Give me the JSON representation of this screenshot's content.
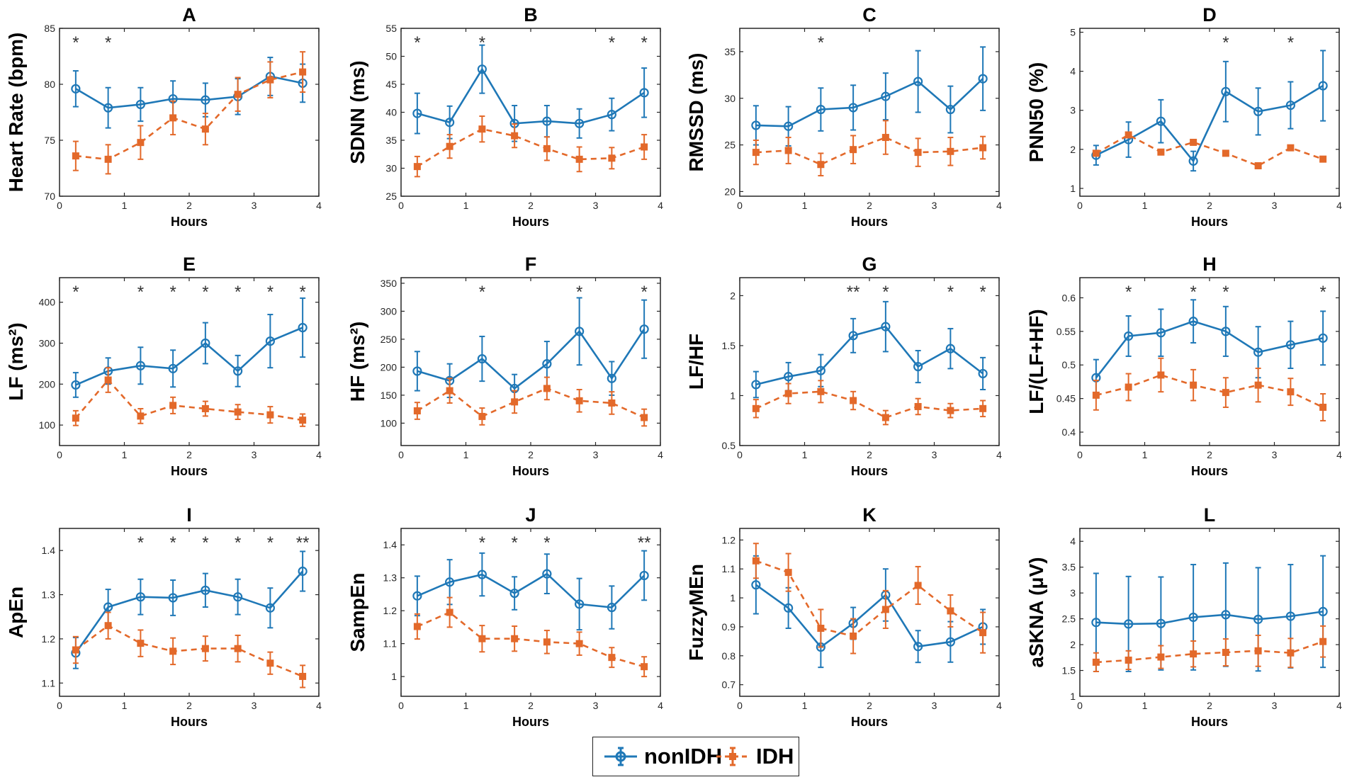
{
  "colors": {
    "nonIDH": "#1f78b7",
    "IDH": "#e3692a",
    "stars": "#333333"
  },
  "legend": {
    "nonIDH": "nonIDH",
    "IDH": "IDH"
  },
  "chart_data": [
    {
      "type": "line",
      "id": "A",
      "title": "A",
      "xlabel": "Hours",
      "ylabel": "Heart Rate (bpm)",
      "xlim": [
        0,
        4
      ],
      "xticks": [
        0,
        1,
        2,
        3,
        4
      ],
      "ylim": [
        70,
        85
      ],
      "yticks": [
        70,
        75,
        80,
        85
      ],
      "x": [
        0.25,
        0.75,
        1.25,
        1.75,
        2.25,
        2.75,
        3.25,
        3.75
      ],
      "series": [
        {
          "name": "nonIDH",
          "values": [
            79.6,
            77.9,
            78.2,
            78.7,
            78.6,
            78.9,
            80.7,
            80.1
          ],
          "err": [
            1.6,
            1.8,
            1.5,
            1.6,
            1.5,
            1.6,
            1.7,
            1.7
          ]
        },
        {
          "name": "IDH",
          "values": [
            73.6,
            73.3,
            74.8,
            77.0,
            76.0,
            79.1,
            80.4,
            81.1
          ],
          "err": [
            1.3,
            1.3,
            1.5,
            1.5,
            1.4,
            1.5,
            1.6,
            1.8
          ]
        }
      ],
      "significance": [
        {
          "x": 0.25,
          "label": "*"
        },
        {
          "x": 0.75,
          "label": "*"
        }
      ]
    },
    {
      "type": "line",
      "id": "B",
      "title": "B",
      "xlabel": "Hours",
      "ylabel": "SDNN (ms)",
      "xlim": [
        0,
        4
      ],
      "xticks": [
        0,
        1,
        2,
        3,
        4
      ],
      "ylim": [
        25,
        55
      ],
      "yticks": [
        25,
        30,
        35,
        40,
        45,
        50,
        55
      ],
      "x": [
        0.25,
        0.75,
        1.25,
        1.75,
        2.25,
        2.75,
        3.25,
        3.75
      ],
      "series": [
        {
          "name": "nonIDH",
          "values": [
            39.8,
            38.2,
            47.7,
            38.0,
            38.4,
            38.0,
            39.6,
            43.5
          ],
          "err": [
            3.6,
            2.9,
            4.3,
            3.2,
            2.8,
            2.6,
            2.9,
            4.4
          ]
        },
        {
          "name": "IDH",
          "values": [
            30.3,
            33.9,
            37.0,
            35.8,
            33.5,
            31.6,
            31.8,
            33.8
          ],
          "err": [
            1.8,
            2.1,
            2.3,
            2.1,
            2.1,
            2.2,
            1.9,
            2.2
          ]
        }
      ],
      "significance": [
        {
          "x": 0.25,
          "label": "*"
        },
        {
          "x": 1.25,
          "label": "*"
        },
        {
          "x": 3.25,
          "label": "*"
        },
        {
          "x": 3.75,
          "label": "*"
        }
      ]
    },
    {
      "type": "line",
      "id": "C",
      "title": "C",
      "xlabel": "Hours",
      "ylabel": "RMSSD (ms)",
      "xlim": [
        0,
        4
      ],
      "xticks": [
        0,
        1,
        2,
        3,
        4
      ],
      "ylim": [
        19.5,
        37.5
      ],
      "yticks": [
        20,
        25,
        30,
        35
      ],
      "x": [
        0.25,
        0.75,
        1.25,
        1.75,
        2.25,
        2.75,
        3.25,
        3.75
      ],
      "series": [
        {
          "name": "nonIDH",
          "values": [
            27.1,
            27.0,
            28.8,
            29.0,
            30.2,
            31.8,
            28.8,
            32.1
          ],
          "err": [
            2.1,
            2.1,
            2.3,
            2.4,
            2.5,
            3.3,
            2.5,
            3.4
          ]
        },
        {
          "name": "IDH",
          "values": [
            24.2,
            24.4,
            22.9,
            24.5,
            25.8,
            24.2,
            24.3,
            24.7
          ],
          "err": [
            1.3,
            1.4,
            1.2,
            1.5,
            1.8,
            1.5,
            1.5,
            1.2
          ]
        }
      ],
      "significance": [
        {
          "x": 1.25,
          "label": "*"
        }
      ]
    },
    {
      "type": "line",
      "id": "D",
      "title": "D",
      "xlabel": "Hours",
      "ylabel": "PNN50 (%)",
      "xlim": [
        0,
        4
      ],
      "xticks": [
        0,
        1,
        2,
        3,
        4
      ],
      "ylim": [
        0.8,
        5.1
      ],
      "yticks": [
        1,
        2,
        3,
        4,
        5
      ],
      "x": [
        0.25,
        0.75,
        1.25,
        1.75,
        2.25,
        2.75,
        3.25,
        3.75
      ],
      "series": [
        {
          "name": "nonIDH",
          "values": [
            1.85,
            2.25,
            2.72,
            1.7,
            3.48,
            2.97,
            3.13,
            3.63
          ],
          "err": [
            0.25,
            0.45,
            0.55,
            0.25,
            0.77,
            0.6,
            0.6,
            0.9
          ]
        },
        {
          "name": "IDH",
          "values": [
            1.9,
            2.37,
            1.93,
            2.18,
            1.9,
            1.58,
            2.04,
            1.75
          ]
        }
      ],
      "significance": [
        {
          "x": 2.25,
          "label": "*"
        },
        {
          "x": 3.25,
          "label": "*"
        }
      ]
    },
    {
      "type": "line",
      "id": "E",
      "title": "E",
      "xlabel": "Hours",
      "ylabel": "LF (ms²)",
      "xlim": [
        0,
        4
      ],
      "xticks": [
        0,
        1,
        2,
        3,
        4
      ],
      "ylim": [
        50,
        460
      ],
      "yticks": [
        100,
        200,
        300,
        400
      ],
      "x": [
        0.25,
        0.75,
        1.25,
        1.75,
        2.25,
        2.75,
        3.25,
        3.75
      ],
      "series": [
        {
          "name": "nonIDH",
          "values": [
            198,
            232,
            245,
            238,
            300,
            232,
            305,
            338
          ],
          "err": [
            30,
            32,
            45,
            45,
            50,
            38,
            65,
            72
          ]
        },
        {
          "name": "IDH",
          "values": [
            117,
            210,
            122,
            148,
            140,
            132,
            125,
            112
          ],
          "err": [
            18,
            30,
            18,
            20,
            18,
            18,
            20,
            15
          ]
        }
      ],
      "significance": [
        {
          "x": 0.25,
          "label": "*"
        },
        {
          "x": 1.25,
          "label": "*"
        },
        {
          "x": 1.75,
          "label": "*"
        },
        {
          "x": 2.25,
          "label": "*"
        },
        {
          "x": 2.75,
          "label": "*"
        },
        {
          "x": 3.25,
          "label": "*"
        },
        {
          "x": 3.75,
          "label": "*"
        }
      ]
    },
    {
      "type": "line",
      "id": "F",
      "title": "F",
      "xlabel": "Hours",
      "ylabel": "HF (ms²)",
      "xlim": [
        0,
        4
      ],
      "xticks": [
        0,
        1,
        2,
        3,
        4
      ],
      "ylim": [
        60,
        360
      ],
      "yticks": [
        100,
        150,
        200,
        250,
        300,
        350
      ],
      "x": [
        0.25,
        0.75,
        1.25,
        1.75,
        2.25,
        2.75,
        3.25,
        3.75
      ],
      "series": [
        {
          "name": "nonIDH",
          "values": [
            193,
            176,
            215,
            162,
            206,
            264,
            180,
            268
          ],
          "err": [
            35,
            30,
            40,
            25,
            40,
            60,
            30,
            52
          ]
        },
        {
          "name": "IDH",
          "values": [
            122,
            158,
            112,
            138,
            162,
            140,
            136,
            110
          ],
          "err": [
            15,
            22,
            15,
            20,
            20,
            20,
            20,
            15
          ]
        }
      ],
      "significance": [
        {
          "x": 1.25,
          "label": "*"
        },
        {
          "x": 2.75,
          "label": "*"
        },
        {
          "x": 3.75,
          "label": "*"
        }
      ]
    },
    {
      "type": "line",
      "id": "G",
      "title": "G",
      "xlabel": "Hours",
      "ylabel": "LF/HF",
      "xlim": [
        0,
        4
      ],
      "xticks": [
        0,
        1,
        2,
        3,
        4
      ],
      "ylim": [
        0.5,
        2.18
      ],
      "yticks": [
        0.5,
        1,
        1.5,
        2
      ],
      "x": [
        0.25,
        0.75,
        1.25,
        1.75,
        2.25,
        2.75,
        3.25,
        3.75
      ],
      "series": [
        {
          "name": "nonIDH",
          "values": [
            1.11,
            1.19,
            1.25,
            1.6,
            1.69,
            1.29,
            1.47,
            1.22
          ],
          "err": [
            0.13,
            0.14,
            0.16,
            0.17,
            0.25,
            0.16,
            0.2,
            0.16
          ]
        },
        {
          "name": "IDH",
          "values": [
            0.87,
            1.02,
            1.04,
            0.95,
            0.78,
            0.89,
            0.85,
            0.87
          ],
          "err": [
            0.09,
            0.1,
            0.11,
            0.09,
            0.07,
            0.08,
            0.07,
            0.08
          ]
        }
      ],
      "significance": [
        {
          "x": 1.75,
          "label": "**"
        },
        {
          "x": 2.25,
          "label": "*"
        },
        {
          "x": 3.25,
          "label": "*"
        },
        {
          "x": 3.75,
          "label": "*"
        }
      ]
    },
    {
      "type": "line",
      "id": "H",
      "title": "H",
      "xlabel": "Hours",
      "ylabel": "LF/(LF+HF)",
      "xlim": [
        0,
        4
      ],
      "xticks": [
        0,
        1,
        2,
        3,
        4
      ],
      "ylim": [
        0.38,
        0.63
      ],
      "yticks": [
        0.4,
        0.45,
        0.5,
        0.55,
        0.6
      ],
      "x": [
        0.25,
        0.75,
        1.25,
        1.75,
        2.25,
        2.75,
        3.25,
        3.75
      ],
      "series": [
        {
          "name": "nonIDH",
          "values": [
            0.481,
            0.543,
            0.548,
            0.565,
            0.55,
            0.519,
            0.53,
            0.54
          ],
          "err": [
            0.027,
            0.03,
            0.035,
            0.032,
            0.037,
            0.038,
            0.035,
            0.04
          ]
        },
        {
          "name": "IDH",
          "values": [
            0.455,
            0.467,
            0.485,
            0.47,
            0.459,
            0.47,
            0.46,
            0.437
          ],
          "err": [
            0.022,
            0.02,
            0.025,
            0.023,
            0.022,
            0.025,
            0.02,
            0.02
          ]
        }
      ],
      "significance": [
        {
          "x": 0.75,
          "label": "*"
        },
        {
          "x": 1.75,
          "label": "*"
        },
        {
          "x": 2.25,
          "label": "*"
        },
        {
          "x": 3.75,
          "label": "*"
        }
      ]
    },
    {
      "type": "line",
      "id": "I",
      "title": "I",
      "xlabel": "Hours",
      "ylabel": "ApEn",
      "xlim": [
        0,
        4
      ],
      "xticks": [
        0,
        1,
        2,
        3,
        4
      ],
      "ylim": [
        1.07,
        1.45
      ],
      "yticks": [
        1.1,
        1.2,
        1.3,
        1.4
      ],
      "x": [
        0.25,
        0.75,
        1.25,
        1.75,
        2.25,
        2.75,
        3.25,
        3.75
      ],
      "series": [
        {
          "name": "nonIDH",
          "values": [
            1.168,
            1.272,
            1.295,
            1.293,
            1.31,
            1.295,
            1.27,
            1.353
          ],
          "err": [
            0.035,
            0.04,
            0.04,
            0.04,
            0.038,
            0.04,
            0.045,
            0.045
          ]
        },
        {
          "name": "IDH",
          "values": [
            1.175,
            1.23,
            1.19,
            1.172,
            1.178,
            1.178,
            1.145,
            1.115
          ],
          "err": [
            0.03,
            0.03,
            0.03,
            0.03,
            0.028,
            0.03,
            0.025,
            0.025
          ]
        }
      ],
      "significance": [
        {
          "x": 1.25,
          "label": "*"
        },
        {
          "x": 1.75,
          "label": "*"
        },
        {
          "x": 2.25,
          "label": "*"
        },
        {
          "x": 2.75,
          "label": "*"
        },
        {
          "x": 3.25,
          "label": "*"
        },
        {
          "x": 3.75,
          "label": "**"
        }
      ]
    },
    {
      "type": "line",
      "id": "J",
      "title": "J",
      "xlabel": "Hours",
      "ylabel": "SampEn",
      "xlim": [
        0,
        4
      ],
      "xticks": [
        0,
        1,
        2,
        3,
        4
      ],
      "ylim": [
        0.94,
        1.45
      ],
      "yticks": [
        1,
        1.1,
        1.2,
        1.3,
        1.4
      ],
      "x": [
        0.25,
        0.75,
        1.25,
        1.75,
        2.25,
        2.75,
        3.25,
        3.75
      ],
      "series": [
        {
          "name": "nonIDH",
          "values": [
            1.245,
            1.287,
            1.31,
            1.253,
            1.312,
            1.22,
            1.21,
            1.307
          ],
          "err": [
            0.06,
            0.068,
            0.065,
            0.05,
            0.06,
            0.078,
            0.065,
            0.075
          ]
        },
        {
          "name": "IDH",
          "values": [
            1.152,
            1.195,
            1.115,
            1.115,
            1.105,
            1.1,
            1.058,
            1.03
          ],
          "err": [
            0.038,
            0.045,
            0.04,
            0.038,
            0.035,
            0.035,
            0.03,
            0.03
          ]
        }
      ],
      "significance": [
        {
          "x": 1.25,
          "label": "*"
        },
        {
          "x": 1.75,
          "label": "*"
        },
        {
          "x": 2.25,
          "label": "*"
        },
        {
          "x": 3.75,
          "label": "**"
        }
      ]
    },
    {
      "type": "line",
      "id": "K",
      "title": "K",
      "xlabel": "Hours",
      "ylabel": "FuzzyMEn",
      "xlim": [
        0,
        4
      ],
      "xticks": [
        0,
        1,
        2,
        3,
        4
      ],
      "ylim": [
        0.66,
        1.24
      ],
      "yticks": [
        0.7,
        0.8,
        0.9,
        1,
        1.1,
        1.2
      ],
      "x": [
        0.25,
        0.75,
        1.25,
        1.75,
        2.25,
        2.75,
        3.25,
        3.75
      ],
      "series": [
        {
          "name": "nonIDH",
          "values": [
            1.045,
            0.965,
            0.83,
            0.912,
            1.01,
            0.832,
            0.848,
            0.9
          ],
          "err": [
            0.1,
            0.07,
            0.07,
            0.055,
            0.09,
            0.055,
            0.07,
            0.06
          ]
        },
        {
          "name": "IDH",
          "values": [
            1.128,
            1.088,
            0.895,
            0.868,
            0.96,
            1.043,
            0.955,
            0.88
          ],
          "err": [
            0.06,
            0.065,
            0.065,
            0.06,
            0.065,
            0.065,
            0.055,
            0.07
          ]
        }
      ],
      "significance": []
    },
    {
      "type": "line",
      "id": "L",
      "title": "L",
      "xlabel": "Hours",
      "ylabel": "aSKNA (μV)",
      "xlim": [
        0,
        4
      ],
      "xticks": [
        0,
        1,
        2,
        3,
        4
      ],
      "ylim": [
        1,
        4.25
      ],
      "yticks": [
        1,
        1.5,
        2,
        2.5,
        3,
        3.5,
        4
      ],
      "x": [
        0.25,
        0.75,
        1.25,
        1.75,
        2.25,
        2.75,
        3.25,
        3.75
      ],
      "series": [
        {
          "name": "nonIDH",
          "values": [
            2.43,
            2.4,
            2.41,
            2.53,
            2.58,
            2.49,
            2.55,
            2.64
          ],
          "err": [
            0.95,
            0.92,
            0.9,
            1.02,
            1.0,
            1.0,
            1.0,
            1.08
          ]
        },
        {
          "name": "IDH",
          "values": [
            1.66,
            1.7,
            1.76,
            1.82,
            1.85,
            1.88,
            1.84,
            2.06
          ],
          "err": [
            0.18,
            0.18,
            0.22,
            0.25,
            0.26,
            0.3,
            0.28,
            0.3
          ]
        }
      ],
      "significance": []
    }
  ]
}
